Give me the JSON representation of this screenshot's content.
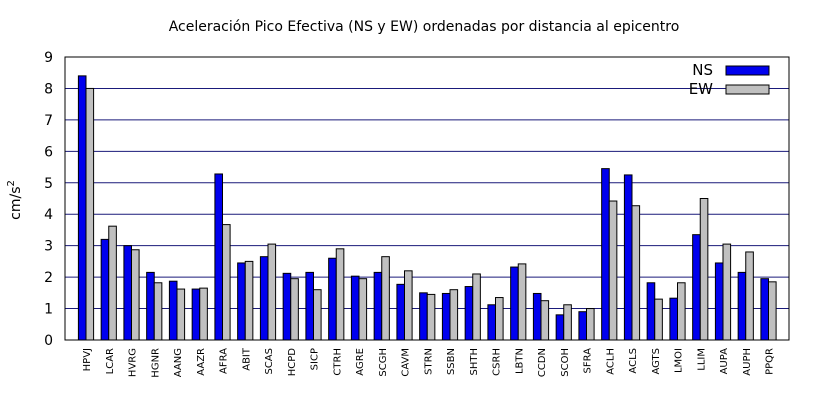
{
  "chart_data": {
    "type": "bar",
    "title": "Aceleración Pico Efectiva (NS y EW) ordenadas por distancia al epicentro",
    "xlabel": "",
    "ylabel": "cm/s",
    "ylabel_sup": "2",
    "ylim": [
      0,
      9
    ],
    "yticks": [
      0,
      1,
      2,
      3,
      4,
      5,
      6,
      7,
      8,
      9
    ],
    "grid": true,
    "legend_position": "top-right",
    "categories": [
      "HPVJ",
      "LCAR",
      "HVRG",
      "HGNR",
      "AANG",
      "AAZR",
      "AFRA",
      "ABIT",
      "SCAS",
      "HCPD",
      "SICP",
      "CTRH",
      "AGRE",
      "SCGH",
      "CAVM",
      "STRN",
      "SSBN",
      "SHTH",
      "CSRH",
      "LBTN",
      "CCDN",
      "SCOH",
      "SFRA",
      "ACLH",
      "ACLS",
      "AGTS",
      "LMOI",
      "LLIM",
      "AUPA",
      "AUPH",
      "PPQR"
    ],
    "series": [
      {
        "name": "NS",
        "color": "#0000ee",
        "values": [
          8.4,
          3.2,
          3.0,
          2.15,
          1.87,
          1.62,
          5.28,
          2.45,
          2.65,
          2.12,
          2.15,
          2.6,
          2.03,
          2.15,
          1.77,
          1.5,
          1.48,
          1.7,
          1.12,
          2.32,
          1.48,
          0.8,
          0.9,
          5.45,
          5.25,
          1.82,
          1.33,
          3.35,
          2.45,
          2.15,
          1.95
        ]
      },
      {
        "name": "EW",
        "color": "#c0c0c0",
        "values": [
          8.0,
          3.62,
          2.87,
          1.82,
          1.62,
          1.65,
          3.67,
          2.5,
          3.05,
          1.95,
          1.6,
          2.9,
          1.95,
          2.65,
          2.2,
          1.45,
          1.6,
          2.1,
          1.35,
          2.42,
          1.25,
          1.12,
          1.0,
          4.42,
          4.27,
          1.3,
          1.82,
          4.5,
          3.05,
          2.8,
          1.85
        ]
      }
    ]
  }
}
